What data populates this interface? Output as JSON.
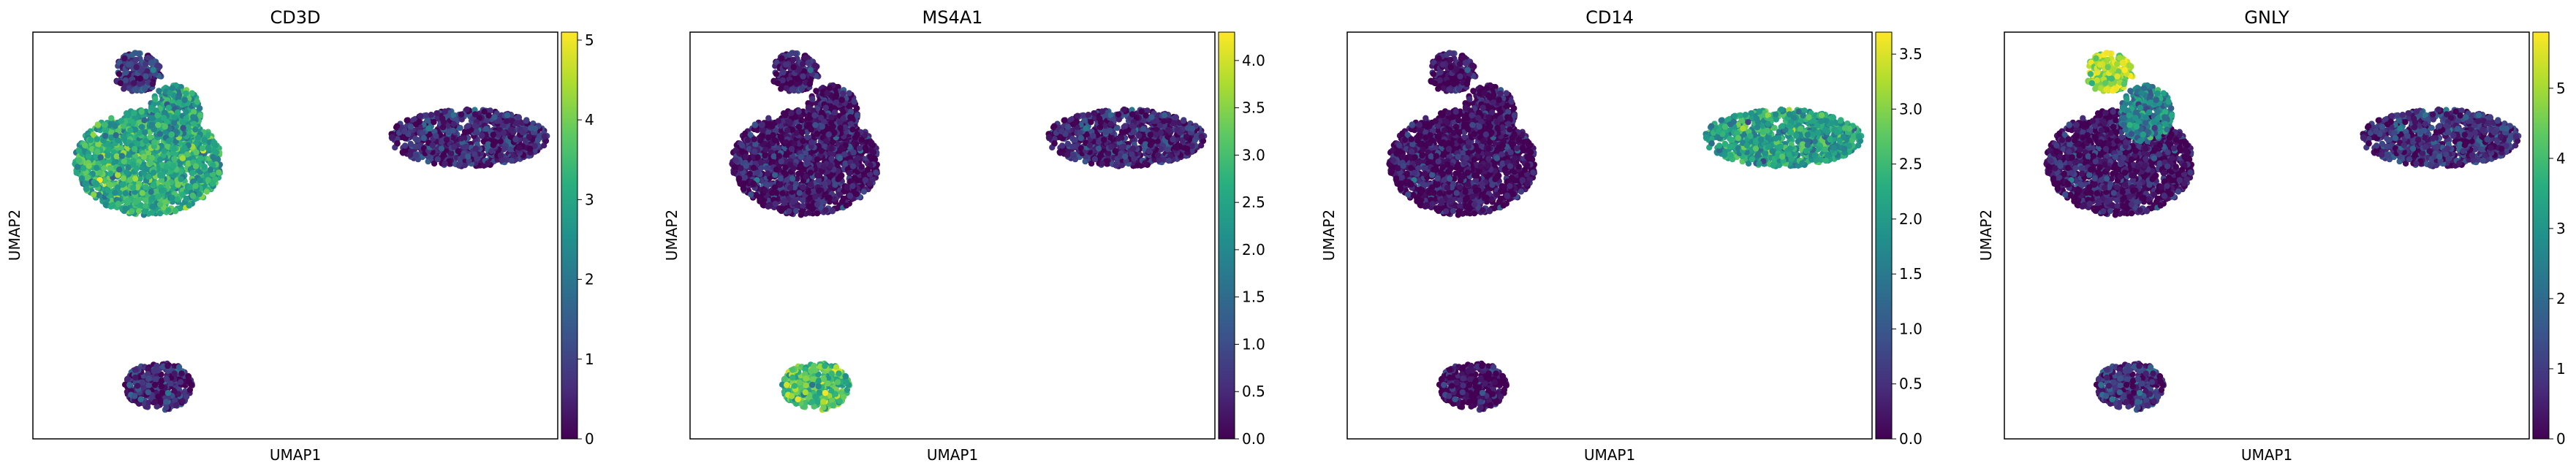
{
  "chart_data": [
    {
      "type": "scatter",
      "title": "CD3D",
      "xlabel": "UMAP1",
      "ylabel": "UMAP2",
      "colorbar": {
        "colormap": "viridis",
        "range": [
          0,
          5.1
        ],
        "ticks": [
          "0",
          "1",
          "2",
          "3",
          "4",
          "5"
        ]
      },
      "clusters": [
        {
          "name": "top-small",
          "cx": 0.2,
          "cy": 0.9,
          "rx": 0.045,
          "ry": 0.05,
          "level": 0.15
        },
        {
          "name": "left-main",
          "cx": 0.22,
          "cy": 0.68,
          "rx": 0.14,
          "ry": 0.13,
          "level": 0.62
        },
        {
          "name": "left-upper-arm",
          "cx": 0.27,
          "cy": 0.8,
          "rx": 0.05,
          "ry": 0.07,
          "level": 0.55
        },
        {
          "name": "right",
          "cx": 0.83,
          "cy": 0.74,
          "rx": 0.15,
          "ry": 0.07,
          "level": 0.1
        },
        {
          "name": "bottom",
          "cx": 0.24,
          "cy": 0.13,
          "rx": 0.065,
          "ry": 0.06,
          "level": 0.12
        }
      ]
    },
    {
      "type": "scatter",
      "title": "MS4A1",
      "xlabel": "UMAP1",
      "ylabel": "UMAP2",
      "colorbar": {
        "colormap": "viridis",
        "range": [
          0,
          4.3
        ],
        "ticks": [
          "0.0",
          "0.5",
          "1.0",
          "1.5",
          "2.0",
          "2.5",
          "3.0",
          "3.5",
          "4.0"
        ]
      },
      "clusters": [
        {
          "name": "top-small",
          "cx": 0.2,
          "cy": 0.9,
          "rx": 0.045,
          "ry": 0.05,
          "level": 0.05
        },
        {
          "name": "left-main",
          "cx": 0.22,
          "cy": 0.68,
          "rx": 0.14,
          "ry": 0.13,
          "level": 0.06
        },
        {
          "name": "left-upper-arm",
          "cx": 0.27,
          "cy": 0.8,
          "rx": 0.05,
          "ry": 0.07,
          "level": 0.05
        },
        {
          "name": "right",
          "cx": 0.83,
          "cy": 0.74,
          "rx": 0.15,
          "ry": 0.07,
          "level": 0.08
        },
        {
          "name": "bottom",
          "cx": 0.24,
          "cy": 0.13,
          "rx": 0.065,
          "ry": 0.06,
          "level": 0.72
        }
      ]
    },
    {
      "type": "scatter",
      "title": "CD14",
      "xlabel": "UMAP1",
      "ylabel": "UMAP2",
      "colorbar": {
        "colormap": "viridis",
        "range": [
          0,
          3.7
        ],
        "ticks": [
          "0.0",
          "0.5",
          "1.0",
          "1.5",
          "2.0",
          "2.5",
          "3.0",
          "3.5"
        ]
      },
      "clusters": [
        {
          "name": "top-small",
          "cx": 0.2,
          "cy": 0.9,
          "rx": 0.045,
          "ry": 0.05,
          "level": 0.02
        },
        {
          "name": "left-main",
          "cx": 0.22,
          "cy": 0.68,
          "rx": 0.14,
          "ry": 0.13,
          "level": 0.03
        },
        {
          "name": "left-upper-arm",
          "cx": 0.27,
          "cy": 0.8,
          "rx": 0.05,
          "ry": 0.07,
          "level": 0.02
        },
        {
          "name": "right",
          "cx": 0.83,
          "cy": 0.74,
          "rx": 0.15,
          "ry": 0.07,
          "level": 0.55
        },
        {
          "name": "bottom",
          "cx": 0.24,
          "cy": 0.13,
          "rx": 0.065,
          "ry": 0.06,
          "level": 0.02
        }
      ]
    },
    {
      "type": "scatter",
      "title": "GNLY",
      "xlabel": "UMAP1",
      "ylabel": "UMAP2",
      "colorbar": {
        "colormap": "viridis",
        "range": [
          0,
          5.8
        ],
        "ticks": [
          "0",
          "1",
          "2",
          "3",
          "4",
          "5"
        ]
      },
      "clusters": [
        {
          "name": "top-small",
          "cx": 0.2,
          "cy": 0.9,
          "rx": 0.045,
          "ry": 0.05,
          "level": 0.85
        },
        {
          "name": "left-main",
          "cx": 0.22,
          "cy": 0.68,
          "rx": 0.14,
          "ry": 0.13,
          "level": 0.05
        },
        {
          "name": "left-upper-arm",
          "cx": 0.27,
          "cy": 0.8,
          "rx": 0.05,
          "ry": 0.07,
          "level": 0.45
        },
        {
          "name": "right",
          "cx": 0.83,
          "cy": 0.74,
          "rx": 0.15,
          "ry": 0.07,
          "level": 0.12
        },
        {
          "name": "bottom",
          "cx": 0.24,
          "cy": 0.13,
          "rx": 0.065,
          "ry": 0.06,
          "level": 0.15
        }
      ]
    }
  ]
}
